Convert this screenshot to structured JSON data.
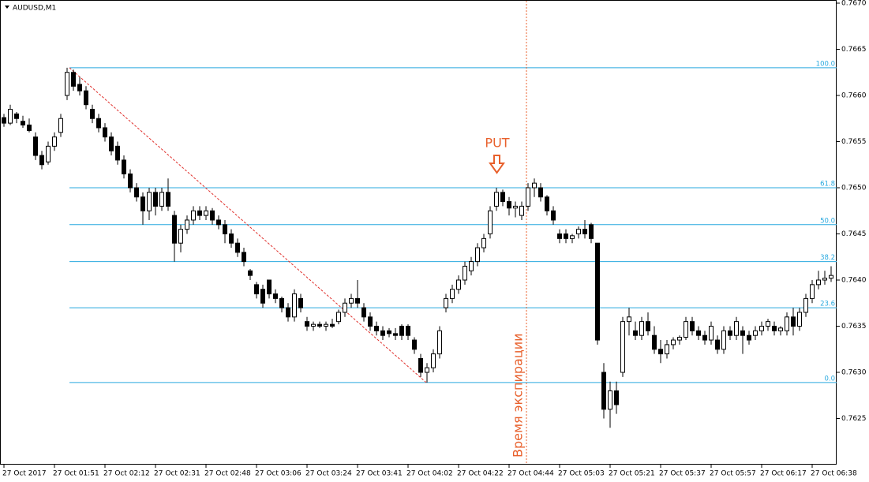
{
  "chart_data": {
    "type": "candlestick",
    "title": "AUDUSD,M1",
    "ylim": [
      0.762,
      0.767
    ],
    "yticks": [
      {
        "value": 0.767,
        "label": "0.7670"
      },
      0.7665,
      {
        "value": 0.766,
        "label": "0.7660"
      },
      0.7655,
      {
        "value": 0.765,
        "label": "0.7650"
      },
      0.7645,
      {
        "value": 0.764,
        "label": "0.7640"
      },
      0.7635,
      {
        "value": 0.763,
        "label": "0.7630"
      },
      0.7625
    ],
    "x_labels": [
      "27 Oct 2017",
      "27 Oct 01:51",
      "27 Oct 02:12",
      "27 Oct 02:31",
      "27 Oct 02:48",
      "27 Oct 03:06",
      "27 Oct 03:24",
      "27 Oct 03:41",
      "27 Oct 04:02",
      "27 Oct 04:22",
      "27 Oct 04:44",
      "27 Oct 05:03",
      "27 Oct 05:21",
      "27 Oct 05:37",
      "27 Oct 05:57",
      "27 Oct 06:17",
      "27 Oct 06:38"
    ],
    "fib_color": "#29a9df",
    "fib_levels": [
      {
        "value": 0.7663,
        "label": "100.0"
      },
      {
        "value": 0.765,
        "label": "61.8"
      },
      {
        "value": 0.7646,
        "label": "50.0"
      },
      {
        "value": 0.7642,
        "label": "38.2"
      },
      {
        "value": 0.7637,
        "label": "23.6"
      },
      {
        "value": 0.76289,
        "label": "0.0"
      }
    ],
    "trend_color": "#e0302c",
    "annotation_color": "#e8602c",
    "signal_label": "PUT",
    "expiry_label": "Время экспирации",
    "ohlc": [
      [
        0.76576,
        0.7658,
        0.76566,
        0.7657
      ],
      [
        0.7657,
        0.7659,
        0.76568,
        0.76585
      ],
      [
        0.7658,
        0.76582,
        0.7657,
        0.76575
      ],
      [
        0.76572,
        0.76578,
        0.76565,
        0.76568
      ],
      [
        0.76568,
        0.76575,
        0.7656,
        0.76562
      ],
      [
        0.76555,
        0.7656,
        0.7653,
        0.76535
      ],
      [
        0.76535,
        0.7654,
        0.7652,
        0.76525
      ],
      [
        0.76528,
        0.7655,
        0.76525,
        0.76545
      ],
      [
        0.76545,
        0.7656,
        0.7654,
        0.76555
      ],
      [
        0.7656,
        0.7658,
        0.76555,
        0.76575
      ],
      [
        0.766,
        0.7663,
        0.76595,
        0.76625
      ],
      [
        0.76625,
        0.76628,
        0.76605,
        0.7661
      ],
      [
        0.76612,
        0.7662,
        0.766,
        0.76605
      ],
      [
        0.76605,
        0.7661,
        0.76585,
        0.7659
      ],
      [
        0.76585,
        0.7659,
        0.7657,
        0.76575
      ],
      [
        0.76575,
        0.7658,
        0.7656,
        0.76565
      ],
      [
        0.76565,
        0.7657,
        0.7655,
        0.76555
      ],
      [
        0.76555,
        0.7656,
        0.76535,
        0.7654
      ],
      [
        0.76545,
        0.7655,
        0.76525,
        0.7653
      ],
      [
        0.7653,
        0.76535,
        0.7651,
        0.76515
      ],
      [
        0.76515,
        0.7652,
        0.76495,
        0.765
      ],
      [
        0.765,
        0.76505,
        0.76485,
        0.7649
      ],
      [
        0.7649,
        0.76495,
        0.7646,
        0.76475
      ],
      [
        0.76475,
        0.765,
        0.76465,
        0.76495
      ],
      [
        0.76495,
        0.765,
        0.7647,
        0.7648
      ],
      [
        0.7648,
        0.765,
        0.76475,
        0.76495
      ],
      [
        0.76495,
        0.7651,
        0.76475,
        0.7648
      ],
      [
        0.7647,
        0.76475,
        0.7642,
        0.7644
      ],
      [
        0.7644,
        0.7646,
        0.7643,
        0.76455
      ],
      [
        0.76455,
        0.7647,
        0.7645,
        0.76465
      ],
      [
        0.76465,
        0.7648,
        0.7646,
        0.76475
      ],
      [
        0.76475,
        0.7648,
        0.76465,
        0.7647
      ],
      [
        0.7647,
        0.7648,
        0.76465,
        0.76475
      ],
      [
        0.76475,
        0.76478,
        0.7646,
        0.76465
      ],
      [
        0.76465,
        0.7647,
        0.76455,
        0.7646
      ],
      [
        0.7646,
        0.76465,
        0.7644,
        0.7645
      ],
      [
        0.7645,
        0.76455,
        0.76435,
        0.7644
      ],
      [
        0.7644,
        0.76445,
        0.76425,
        0.7643
      ],
      [
        0.7643,
        0.76435,
        0.76415,
        0.7642
      ],
      [
        0.7641,
        0.76412,
        0.764,
        0.76405
      ],
      [
        0.76395,
        0.76398,
        0.7638,
        0.76385
      ],
      [
        0.7639,
        0.76395,
        0.7637,
        0.76375
      ],
      [
        0.764,
        0.764,
        0.7638,
        0.76385
      ],
      [
        0.76385,
        0.7639,
        0.76375,
        0.7638
      ],
      [
        0.7638,
        0.76382,
        0.76365,
        0.7637
      ],
      [
        0.7637,
        0.76375,
        0.76355,
        0.7636
      ],
      [
        0.7636,
        0.7639,
        0.76355,
        0.76385
      ],
      [
        0.7638,
        0.76385,
        0.76365,
        0.7637
      ],
      [
        0.76355,
        0.7636,
        0.76345,
        0.7635
      ],
      [
        0.7635,
        0.76355,
        0.76345,
        0.76352
      ],
      [
        0.76352,
        0.76355,
        0.76348,
        0.7635
      ],
      [
        0.7635,
        0.76355,
        0.76345,
        0.76352
      ],
      [
        0.76352,
        0.76358,
        0.76348,
        0.7635
      ],
      [
        0.76355,
        0.76368,
        0.76352,
        0.76365
      ],
      [
        0.76365,
        0.7638,
        0.7636,
        0.76375
      ],
      [
        0.76375,
        0.76385,
        0.7637,
        0.7638
      ],
      [
        0.7638,
        0.764,
        0.7637,
        0.76375
      ],
      [
        0.7637,
        0.76375,
        0.76355,
        0.7636
      ],
      [
        0.7636,
        0.76365,
        0.76345,
        0.7635
      ],
      [
        0.7635,
        0.76355,
        0.7634,
        0.76345
      ],
      [
        0.76345,
        0.7635,
        0.76335,
        0.7634
      ],
      [
        0.76345,
        0.76348,
        0.76338,
        0.76342
      ],
      [
        0.76342,
        0.76348,
        0.76335,
        0.7634
      ],
      [
        0.7635,
        0.76352,
        0.76335,
        0.7634
      ],
      [
        0.7635,
        0.76352,
        0.76335,
        0.7634
      ],
      [
        0.76335,
        0.76338,
        0.7632,
        0.76325
      ],
      [
        0.76315,
        0.7632,
        0.76295,
        0.763
      ],
      [
        0.763,
        0.7631,
        0.76289,
        0.76305
      ],
      [
        0.76305,
        0.76325,
        0.763,
        0.7632
      ],
      [
        0.7632,
        0.7635,
        0.76315,
        0.76345
      ],
      [
        0.7637,
        0.76385,
        0.76365,
        0.7638
      ],
      [
        0.7638,
        0.76395,
        0.76375,
        0.7639
      ],
      [
        0.7639,
        0.76405,
        0.76385,
        0.764
      ],
      [
        0.764,
        0.7642,
        0.76395,
        0.76415
      ],
      [
        0.7641,
        0.76425,
        0.76405,
        0.7642
      ],
      [
        0.7642,
        0.7644,
        0.76415,
        0.76435
      ],
      [
        0.76435,
        0.7645,
        0.7643,
        0.76445
      ],
      [
        0.7645,
        0.7648,
        0.76445,
        0.76475
      ],
      [
        0.7648,
        0.765,
        0.76475,
        0.76495
      ],
      [
        0.76495,
        0.76498,
        0.7648,
        0.76485
      ],
      [
        0.76485,
        0.7649,
        0.7647,
        0.76478
      ],
      [
        0.76478,
        0.76485,
        0.76468,
        0.7648
      ],
      [
        0.7647,
        0.76485,
        0.76465,
        0.7648
      ],
      [
        0.7648,
        0.76505,
        0.76475,
        0.765
      ],
      [
        0.765,
        0.7651,
        0.7649,
        0.76505
      ],
      [
        0.765,
        0.76505,
        0.76485,
        0.7649
      ],
      [
        0.7649,
        0.76492,
        0.7647,
        0.76475
      ],
      [
        0.76475,
        0.7648,
        0.7646,
        0.76465
      ],
      [
        0.7645,
        0.76455,
        0.7644,
        0.76445
      ],
      [
        0.7645,
        0.76455,
        0.7644,
        0.76445
      ],
      [
        0.76445,
        0.7645,
        0.7644,
        0.76448
      ],
      [
        0.7645,
        0.76458,
        0.76445,
        0.76455
      ],
      [
        0.76455,
        0.76465,
        0.76445,
        0.7645
      ],
      [
        0.7646,
        0.76462,
        0.7644,
        0.76445
      ],
      [
        0.7644,
        0.7644,
        0.7633,
        0.76335
      ],
      [
        0.763,
        0.7631,
        0.7625,
        0.7626
      ],
      [
        0.7626,
        0.7629,
        0.7624,
        0.7628
      ],
      [
        0.7628,
        0.7629,
        0.76255,
        0.76265
      ],
      [
        0.763,
        0.7636,
        0.76295,
        0.76355
      ],
      [
        0.76355,
        0.7637,
        0.7634,
        0.7636
      ],
      [
        0.76345,
        0.76355,
        0.76335,
        0.7634
      ],
      [
        0.7634,
        0.7636,
        0.76335,
        0.76355
      ],
      [
        0.76355,
        0.76365,
        0.7634,
        0.76345
      ],
      [
        0.7634,
        0.7635,
        0.7632,
        0.76325
      ],
      [
        0.76325,
        0.76335,
        0.7631,
        0.7632
      ],
      [
        0.7632,
        0.76335,
        0.76315,
        0.7633
      ],
      [
        0.7633,
        0.76338,
        0.76325,
        0.76335
      ],
      [
        0.76335,
        0.7634,
        0.7633,
        0.76338
      ],
      [
        0.76338,
        0.7636,
        0.76335,
        0.76355
      ],
      [
        0.76355,
        0.7636,
        0.7634,
        0.76345
      ],
      [
        0.76345,
        0.7635,
        0.76335,
        0.7634
      ],
      [
        0.7634,
        0.76345,
        0.7633,
        0.76335
      ],
      [
        0.76335,
        0.76355,
        0.7633,
        0.7635
      ],
      [
        0.76335,
        0.7634,
        0.7632,
        0.76325
      ],
      [
        0.76325,
        0.7635,
        0.7632,
        0.76345
      ],
      [
        0.76345,
        0.7635,
        0.76335,
        0.7634
      ],
      [
        0.7634,
        0.7636,
        0.76335,
        0.76355
      ],
      [
        0.76345,
        0.7635,
        0.7632,
        0.7634
      ],
      [
        0.7634,
        0.76345,
        0.7633,
        0.76335
      ],
      [
        0.7634,
        0.7635,
        0.76335,
        0.76345
      ],
      [
        0.76345,
        0.76355,
        0.7634,
        0.7635
      ],
      [
        0.7635,
        0.76358,
        0.76345,
        0.76355
      ],
      [
        0.7635,
        0.76355,
        0.7634,
        0.76345
      ],
      [
        0.76345,
        0.7635,
        0.7634,
        0.76348
      ],
      [
        0.76345,
        0.76365,
        0.7634,
        0.7636
      ],
      [
        0.7636,
        0.7637,
        0.7634,
        0.7635
      ],
      [
        0.7635,
        0.7637,
        0.76345,
        0.76365
      ],
      [
        0.76365,
        0.76385,
        0.7636,
        0.7638
      ],
      [
        0.7638,
        0.764,
        0.76375,
        0.76395
      ],
      [
        0.76395,
        0.7641,
        0.7639,
        0.764
      ],
      [
        0.764,
        0.7641,
        0.76395,
        0.76402
      ],
      [
        0.76402,
        0.76415,
        0.76398,
        0.76405
      ]
    ]
  }
}
